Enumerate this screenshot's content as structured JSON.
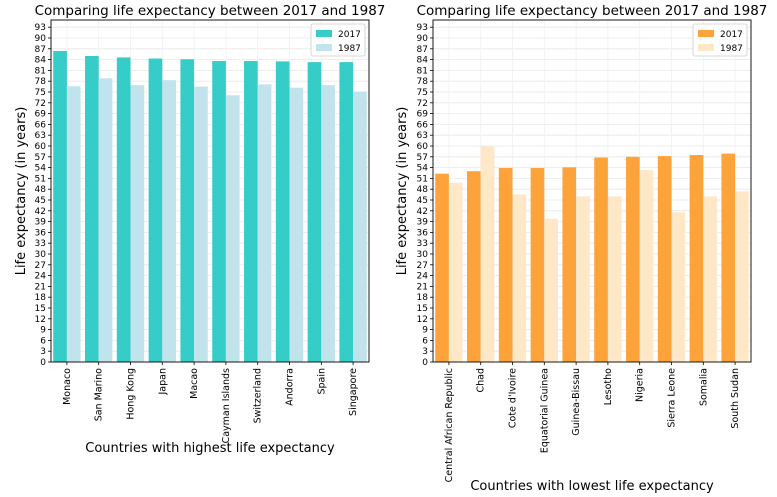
{
  "chart_data": [
    {
      "type": "bar",
      "title": "Comparing life expectancy between 2017 and 1987",
      "xlabel": "Countries with highest life expectancy",
      "ylabel": "Life expectancy (in years)",
      "categories": [
        "Monaco",
        "San Marino",
        "Hong Kong",
        "Japan",
        "Macao",
        "Cayman Islands",
        "Switzerland",
        "Andorra",
        "Spain",
        "Singapore"
      ],
      "series": [
        {
          "name": "2017",
          "color": "#36cdc9",
          "values": [
            86.4,
            85.0,
            84.6,
            84.3,
            84.1,
            83.6,
            83.6,
            83.5,
            83.3,
            83.3
          ]
        },
        {
          "name": "1987",
          "color": "#c0e3ec",
          "values": [
            76.6,
            78.8,
            76.9,
            78.3,
            76.5,
            74.1,
            77.1,
            76.2,
            76.9,
            75.1
          ]
        }
      ],
      "ylim": [
        0,
        95
      ],
      "yticks": [
        0,
        3,
        6,
        9,
        12,
        15,
        18,
        21,
        24,
        27,
        30,
        33,
        36,
        39,
        42,
        45,
        48,
        51,
        54,
        57,
        60,
        63,
        66,
        69,
        72,
        75,
        78,
        81,
        84,
        87,
        90,
        93
      ],
      "grid": true,
      "legend": "top-right"
    },
    {
      "type": "bar",
      "title": "Comparing life expectancy between 2017 and 1987",
      "xlabel": "Countries with lowest life expectancy",
      "ylabel": "Life expectancy (in years)",
      "categories": [
        "Central African Republic",
        "Chad",
        "Cote d'Ivoire",
        "Equatorial Guinea",
        "Guinea-Bissau",
        "Lesotho",
        "Nigeria",
        "Sierra Leone",
        "Somalia",
        "South Sudan"
      ],
      "series": [
        {
          "name": "2017",
          "color": "#fea33a",
          "values": [
            52.3,
            53.0,
            53.9,
            53.9,
            54.1,
            56.8,
            57.0,
            57.2,
            57.5,
            57.9
          ]
        },
        {
          "name": "1987",
          "color": "#fee8c8",
          "values": [
            49.8,
            59.9,
            46.6,
            39.8,
            46.0,
            46.0,
            53.3,
            41.6,
            46.0,
            47.4
          ]
        }
      ],
      "ylim": [
        0,
        95
      ],
      "yticks": [
        0,
        3,
        6,
        9,
        12,
        15,
        18,
        21,
        24,
        27,
        30,
        33,
        36,
        39,
        42,
        45,
        48,
        51,
        54,
        57,
        60,
        63,
        66,
        69,
        72,
        75,
        78,
        81,
        84,
        87,
        90,
        93
      ],
      "grid": true,
      "legend": "top-right"
    }
  ]
}
